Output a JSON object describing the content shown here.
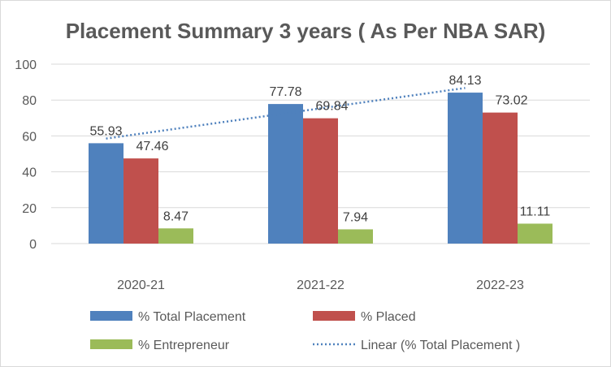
{
  "chart_data": {
    "type": "bar",
    "title": "Placement Summary 3 years ( As Per NBA SAR)",
    "categories": [
      "2020-21",
      "2021-22",
      "2022-23"
    ],
    "series": [
      {
        "name": "% Total Placement",
        "values": [
          55.93,
          77.78,
          84.13
        ],
        "color": "#4f81bd"
      },
      {
        "name": "% Placed",
        "values": [
          47.46,
          69.84,
          73.02
        ],
        "color": "#c0504d"
      },
      {
        "name": "% Entrepreneur",
        "values": [
          8.47,
          7.94,
          11.11
        ],
        "color": "#9bbb59"
      }
    ],
    "data_labels": [
      [
        "55.93",
        "77.78",
        "84.13"
      ],
      [
        "47.46",
        "69.84",
        "73.02"
      ],
      [
        "8.47",
        "7.94",
        "11.11"
      ]
    ],
    "trendline": {
      "name": "Linear (% Total Placement )",
      "type": "linear",
      "of_series": "% Total Placement",
      "color": "#4f81bd",
      "style": "dotted"
    },
    "yticks": [
      "0",
      "20",
      "40",
      "60",
      "80",
      "100"
    ],
    "ylim": [
      0,
      100
    ],
    "xlabel": "",
    "ylabel": "",
    "grid": true,
    "legend_position": "bottom"
  }
}
